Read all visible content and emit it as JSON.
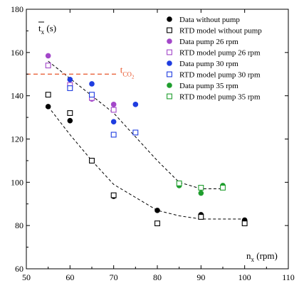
{
  "chart_data": {
    "type": "scatter",
    "title": "",
    "xlabel_base": "n",
    "xlabel_sub": "x",
    "xlabel_unit": " (rpm)",
    "ylabel_base": "t",
    "ylabel_sub": "x",
    "ylabel_unit": " (s)",
    "xlim": [
      50,
      110
    ],
    "ylim": [
      60,
      180
    ],
    "xticks": [
      50,
      60,
      70,
      80,
      90,
      100,
      110
    ],
    "yticks": [
      60,
      80,
      100,
      120,
      140,
      160,
      180
    ],
    "grid": false,
    "legend_position": "top-right",
    "series": [
      {
        "name": "Data without pump",
        "marker": "filled-circle",
        "color": "#000000",
        "points": [
          [
            55,
            135
          ],
          [
            60,
            128.5
          ],
          [
            65,
            110
          ],
          [
            70,
            93.5
          ],
          [
            80,
            87
          ],
          [
            90,
            85
          ],
          [
            100,
            82.5
          ]
        ]
      },
      {
        "name": "RTD model without pump",
        "marker": "open-square",
        "color": "#000000",
        "points": [
          [
            55,
            140.5
          ],
          [
            60,
            132
          ],
          [
            65,
            110
          ],
          [
            70,
            94
          ],
          [
            80,
            81
          ],
          [
            90,
            84
          ],
          [
            100,
            81
          ]
        ]
      },
      {
        "name": "Data pump 26 rpm",
        "marker": "filled-circle",
        "color": "#a347c9",
        "points": [
          [
            55,
            158.5
          ],
          [
            60,
            145
          ],
          [
            65,
            138.5
          ],
          [
            70,
            136
          ]
        ]
      },
      {
        "name": "RTD model pump 26 rpm",
        "marker": "open-square",
        "color": "#a347c9",
        "points": [
          [
            55,
            154
          ],
          [
            60,
            145
          ],
          [
            65,
            139
          ],
          [
            70,
            133.5
          ]
        ]
      },
      {
        "name": "Data pump 30 rpm",
        "marker": "filled-circle",
        "color": "#1f3de0",
        "points": [
          [
            60,
            147.5
          ],
          [
            65,
            145.5
          ],
          [
            70,
            128
          ],
          [
            75,
            136
          ]
        ]
      },
      {
        "name": "RTD model  pump 30 rpm",
        "marker": "open-square",
        "color": "#1f3de0",
        "points": [
          [
            60,
            143.5
          ],
          [
            65,
            140.5
          ],
          [
            70,
            122
          ],
          [
            75,
            123
          ]
        ]
      },
      {
        "name": "Data pump 35 rpm",
        "marker": "filled-circle",
        "color": "#1f9e2e",
        "points": [
          [
            85,
            98.5
          ],
          [
            90,
            95
          ],
          [
            95,
            98.5
          ]
        ]
      },
      {
        "name": "RTD model pump 35 rpm",
        "marker": "open-square",
        "color": "#1f9e2e",
        "points": [
          [
            85,
            99.5
          ],
          [
            90,
            97.5
          ],
          [
            95,
            97.5
          ]
        ]
      }
    ],
    "trend_lines": [
      {
        "style": "dashed",
        "color": "#000000",
        "points": [
          [
            55,
            135
          ],
          [
            60,
            122
          ],
          [
            65,
            110
          ],
          [
            70,
            99
          ],
          [
            75,
            93
          ],
          [
            80,
            87
          ],
          [
            85,
            84.5
          ],
          [
            90,
            83
          ],
          [
            95,
            83
          ],
          [
            100,
            83
          ]
        ]
      },
      {
        "style": "dashed",
        "color": "#000000",
        "points": [
          [
            55,
            156
          ],
          [
            60,
            148
          ],
          [
            65,
            140
          ],
          [
            70,
            132
          ],
          [
            75,
            121
          ],
          [
            80,
            110
          ],
          [
            85,
            100
          ],
          [
            90,
            97
          ],
          [
            95,
            97
          ]
        ]
      }
    ],
    "reference_line": {
      "y": 150,
      "x_from": 50,
      "x_to": 71,
      "color": "#e8542a",
      "style": "dashed",
      "label_base": "t",
      "label_sub": "CO",
      "label_subsub": "2"
    }
  }
}
